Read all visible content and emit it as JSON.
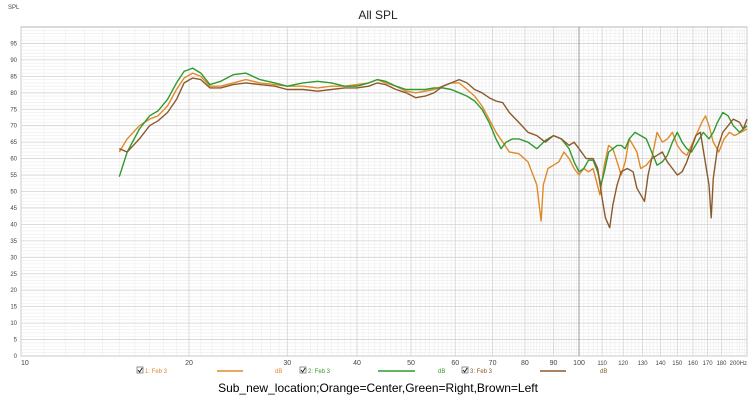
{
  "caption": "Sub_new_location;Orange=Center,Green=Right,Brown=Left",
  "chart_data": {
    "type": "line",
    "title": "All SPL",
    "ylabel": "SPL",
    "xlabel": "",
    "xscale": "log",
    "xlim": [
      10,
      200
    ],
    "ylim": [
      0,
      100
    ],
    "grid": true,
    "x_ticks": [
      {
        "v": 10,
        "label": "10"
      },
      {
        "v": 20,
        "label": "20"
      },
      {
        "v": 30,
        "label": "30"
      },
      {
        "v": 40,
        "label": "40"
      },
      {
        "v": 50,
        "label": "50"
      },
      {
        "v": 60,
        "label": "60"
      },
      {
        "v": 70,
        "label": "70"
      },
      {
        "v": 80,
        "label": "80"
      },
      {
        "v": 90,
        "label": "90"
      },
      {
        "v": 100,
        "label": "100"
      },
      {
        "v": 110,
        "label": "110"
      },
      {
        "v": 120,
        "label": "120"
      },
      {
        "v": 130,
        "label": "130"
      },
      {
        "v": 140,
        "label": "140"
      },
      {
        "v": 150,
        "label": "150"
      },
      {
        "v": 160,
        "label": "160"
      },
      {
        "v": 170,
        "label": "170"
      },
      {
        "v": 180,
        "label": "180"
      },
      {
        "v": 200,
        "label": "200Hz"
      }
    ],
    "y_ticks": [
      0,
      5,
      10,
      15,
      20,
      25,
      30,
      35,
      40,
      45,
      50,
      55,
      60,
      65,
      70,
      75,
      80,
      85,
      90,
      95
    ],
    "legend_position": "bottom",
    "series": [
      {
        "name": "1: Feb 3",
        "unit": "dB",
        "color": "#e08a2c",
        "points": [
          [
            15,
            62
          ],
          [
            15.5,
            66
          ],
          [
            16.3,
            70
          ],
          [
            17,
            72
          ],
          [
            17.6,
            73
          ],
          [
            18.3,
            76
          ],
          [
            19,
            81
          ],
          [
            19.6,
            84.5
          ],
          [
            20.3,
            86
          ],
          [
            21,
            85
          ],
          [
            21.8,
            82
          ],
          [
            22.8,
            82
          ],
          [
            24,
            83
          ],
          [
            25.3,
            84
          ],
          [
            26.8,
            83
          ],
          [
            28.5,
            82.5
          ],
          [
            30,
            82
          ],
          [
            32,
            82
          ],
          [
            34,
            81.5
          ],
          [
            36,
            82
          ],
          [
            38,
            82
          ],
          [
            40,
            82.5
          ],
          [
            42,
            83
          ],
          [
            43.5,
            84
          ],
          [
            45,
            83
          ],
          [
            47,
            82
          ],
          [
            49,
            80.5
          ],
          [
            51,
            80
          ],
          [
            53,
            80.5
          ],
          [
            55,
            81
          ],
          [
            57,
            82
          ],
          [
            59,
            83
          ],
          [
            61,
            83
          ],
          [
            63,
            81
          ],
          [
            65,
            79
          ],
          [
            67,
            76
          ],
          [
            69,
            72
          ],
          [
            71,
            68
          ],
          [
            73,
            65
          ],
          [
            75,
            62
          ],
          [
            78,
            61.5
          ],
          [
            81,
            59
          ],
          [
            84,
            52
          ],
          [
            85.5,
            41
          ],
          [
            86.3,
            52
          ],
          [
            88,
            57
          ],
          [
            90,
            58
          ],
          [
            92,
            59
          ],
          [
            94,
            62
          ],
          [
            96,
            60
          ],
          [
            98,
            57
          ],
          [
            100,
            55
          ],
          [
            102,
            57
          ],
          [
            104,
            56
          ],
          [
            106,
            57
          ],
          [
            107.5,
            53
          ],
          [
            109,
            49
          ],
          [
            111,
            58
          ],
          [
            113,
            64
          ],
          [
            115,
            63
          ],
          [
            117,
            59
          ],
          [
            119,
            55
          ],
          [
            121,
            59
          ],
          [
            123,
            66
          ],
          [
            125,
            64
          ],
          [
            127,
            62
          ],
          [
            129,
            57
          ],
          [
            132,
            58
          ],
          [
            135,
            60
          ],
          [
            138,
            68
          ],
          [
            141,
            65
          ],
          [
            144,
            66
          ],
          [
            147,
            68
          ],
          [
            150,
            64
          ],
          [
            153,
            62
          ],
          [
            156,
            61
          ],
          [
            159,
            64
          ],
          [
            163,
            68
          ],
          [
            166,
            71
          ],
          [
            168.5,
            73
          ],
          [
            171,
            70
          ],
          [
            174,
            65
          ],
          [
            178,
            62
          ],
          [
            182,
            66
          ],
          [
            186,
            68
          ],
          [
            190,
            67
          ],
          [
            195,
            68
          ],
          [
            200,
            69
          ]
        ]
      },
      {
        "name": "2: Feb 3",
        "unit": "dB",
        "color": "#2f9a2f",
        "points": [
          [
            15,
            54.5
          ],
          [
            15.5,
            62
          ],
          [
            16.3,
            69
          ],
          [
            17,
            73
          ],
          [
            17.6,
            74.5
          ],
          [
            18.3,
            78
          ],
          [
            19,
            83
          ],
          [
            19.6,
            86.5
          ],
          [
            20.3,
            87.5
          ],
          [
            21,
            86
          ],
          [
            21.8,
            82.5
          ],
          [
            22.8,
            83.5
          ],
          [
            24,
            85.5
          ],
          [
            25.3,
            86
          ],
          [
            26.8,
            84
          ],
          [
            28.5,
            83
          ],
          [
            30,
            82
          ],
          [
            32,
            83
          ],
          [
            34,
            83.5
          ],
          [
            36,
            83
          ],
          [
            38,
            82
          ],
          [
            40,
            82
          ],
          [
            42,
            83
          ],
          [
            43.5,
            84
          ],
          [
            45,
            83.5
          ],
          [
            47,
            82
          ],
          [
            49,
            81
          ],
          [
            51,
            81
          ],
          [
            53,
            81
          ],
          [
            55,
            81.5
          ],
          [
            57,
            81.5
          ],
          [
            59,
            81
          ],
          [
            61,
            80
          ],
          [
            63,
            79
          ],
          [
            65,
            77.5
          ],
          [
            67,
            75
          ],
          [
            69,
            71
          ],
          [
            71,
            66
          ],
          [
            72.5,
            63
          ],
          [
            74,
            65
          ],
          [
            76,
            66
          ],
          [
            78,
            66
          ],
          [
            81,
            65
          ],
          [
            84,
            63
          ],
          [
            87,
            65.5
          ],
          [
            90,
            67
          ],
          [
            93,
            66
          ],
          [
            96,
            63
          ],
          [
            98,
            59
          ],
          [
            100,
            56
          ],
          [
            102,
            57
          ],
          [
            104,
            59.5
          ],
          [
            106,
            59.5
          ],
          [
            108,
            56
          ],
          [
            109.5,
            52
          ],
          [
            111,
            56
          ],
          [
            113,
            62
          ],
          [
            115,
            63
          ],
          [
            117,
            64
          ],
          [
            119,
            64
          ],
          [
            121,
            63
          ],
          [
            123,
            66
          ],
          [
            126,
            68
          ],
          [
            129,
            67
          ],
          [
            132,
            66
          ],
          [
            135,
            62
          ],
          [
            138,
            58
          ],
          [
            141,
            59
          ],
          [
            144,
            61
          ],
          [
            147,
            65
          ],
          [
            150,
            68
          ],
          [
            153,
            65
          ],
          [
            156,
            63
          ],
          [
            159,
            62
          ],
          [
            163,
            65
          ],
          [
            167,
            68
          ],
          [
            171,
            66
          ],
          [
            174,
            68
          ],
          [
            177,
            71
          ],
          [
            181,
            74
          ],
          [
            185,
            73
          ],
          [
            189,
            70
          ],
          [
            194,
            68
          ],
          [
            200,
            70
          ]
        ]
      },
      {
        "name": "3: Feb 3",
        "unit": "dB",
        "color": "#8b5a2b",
        "points": [
          [
            15,
            63
          ],
          [
            15.5,
            62
          ],
          [
            16.3,
            66
          ],
          [
            17,
            70
          ],
          [
            17.6,
            71.5
          ],
          [
            18.3,
            74
          ],
          [
            19,
            78
          ],
          [
            19.6,
            83
          ],
          [
            20.3,
            84.5
          ],
          [
            21,
            84
          ],
          [
            21.8,
            81.5
          ],
          [
            22.8,
            81.5
          ],
          [
            24,
            82.5
          ],
          [
            25.3,
            83
          ],
          [
            26.8,
            82.5
          ],
          [
            28.5,
            82
          ],
          [
            30,
            81
          ],
          [
            32,
            81
          ],
          [
            34,
            80.5
          ],
          [
            36,
            81
          ],
          [
            38,
            81.5
          ],
          [
            40,
            81.5
          ],
          [
            42,
            82
          ],
          [
            43.5,
            83
          ],
          [
            45,
            82.5
          ],
          [
            47,
            81
          ],
          [
            49,
            80
          ],
          [
            51,
            78.5
          ],
          [
            53,
            79
          ],
          [
            55,
            80
          ],
          [
            57,
            82
          ],
          [
            59,
            83
          ],
          [
            61,
            84
          ],
          [
            63,
            83
          ],
          [
            65,
            81
          ],
          [
            67,
            80
          ],
          [
            69,
            78.5
          ],
          [
            71,
            77.5
          ],
          [
            73,
            77
          ],
          [
            75,
            74
          ],
          [
            78,
            71
          ],
          [
            81,
            68
          ],
          [
            84,
            67
          ],
          [
            87,
            65
          ],
          [
            90,
            67
          ],
          [
            93,
            66
          ],
          [
            96,
            64
          ],
          [
            98,
            65
          ],
          [
            100,
            63
          ],
          [
            103,
            60
          ],
          [
            106,
            60
          ],
          [
            108,
            57
          ],
          [
            110,
            48
          ],
          [
            111.5,
            42
          ],
          [
            113.5,
            39
          ],
          [
            115,
            46
          ],
          [
            117,
            52
          ],
          [
            119,
            56
          ],
          [
            122,
            57
          ],
          [
            125,
            56
          ],
          [
            127,
            51
          ],
          [
            129,
            49
          ],
          [
            131,
            47
          ],
          [
            133,
            55
          ],
          [
            135,
            60
          ],
          [
            138,
            61
          ],
          [
            141,
            62
          ],
          [
            144,
            59
          ],
          [
            147,
            57
          ],
          [
            150,
            55
          ],
          [
            153,
            56
          ],
          [
            156,
            59
          ],
          [
            159,
            63
          ],
          [
            162,
            67
          ],
          [
            165,
            68
          ],
          [
            168,
            60
          ],
          [
            171,
            52
          ],
          [
            172.5,
            42
          ],
          [
            174,
            54
          ],
          [
            177,
            63
          ],
          [
            181,
            68
          ],
          [
            185,
            70
          ],
          [
            189,
            72
          ],
          [
            194,
            71
          ],
          [
            197,
            69
          ],
          [
            200,
            72
          ]
        ]
      }
    ]
  }
}
